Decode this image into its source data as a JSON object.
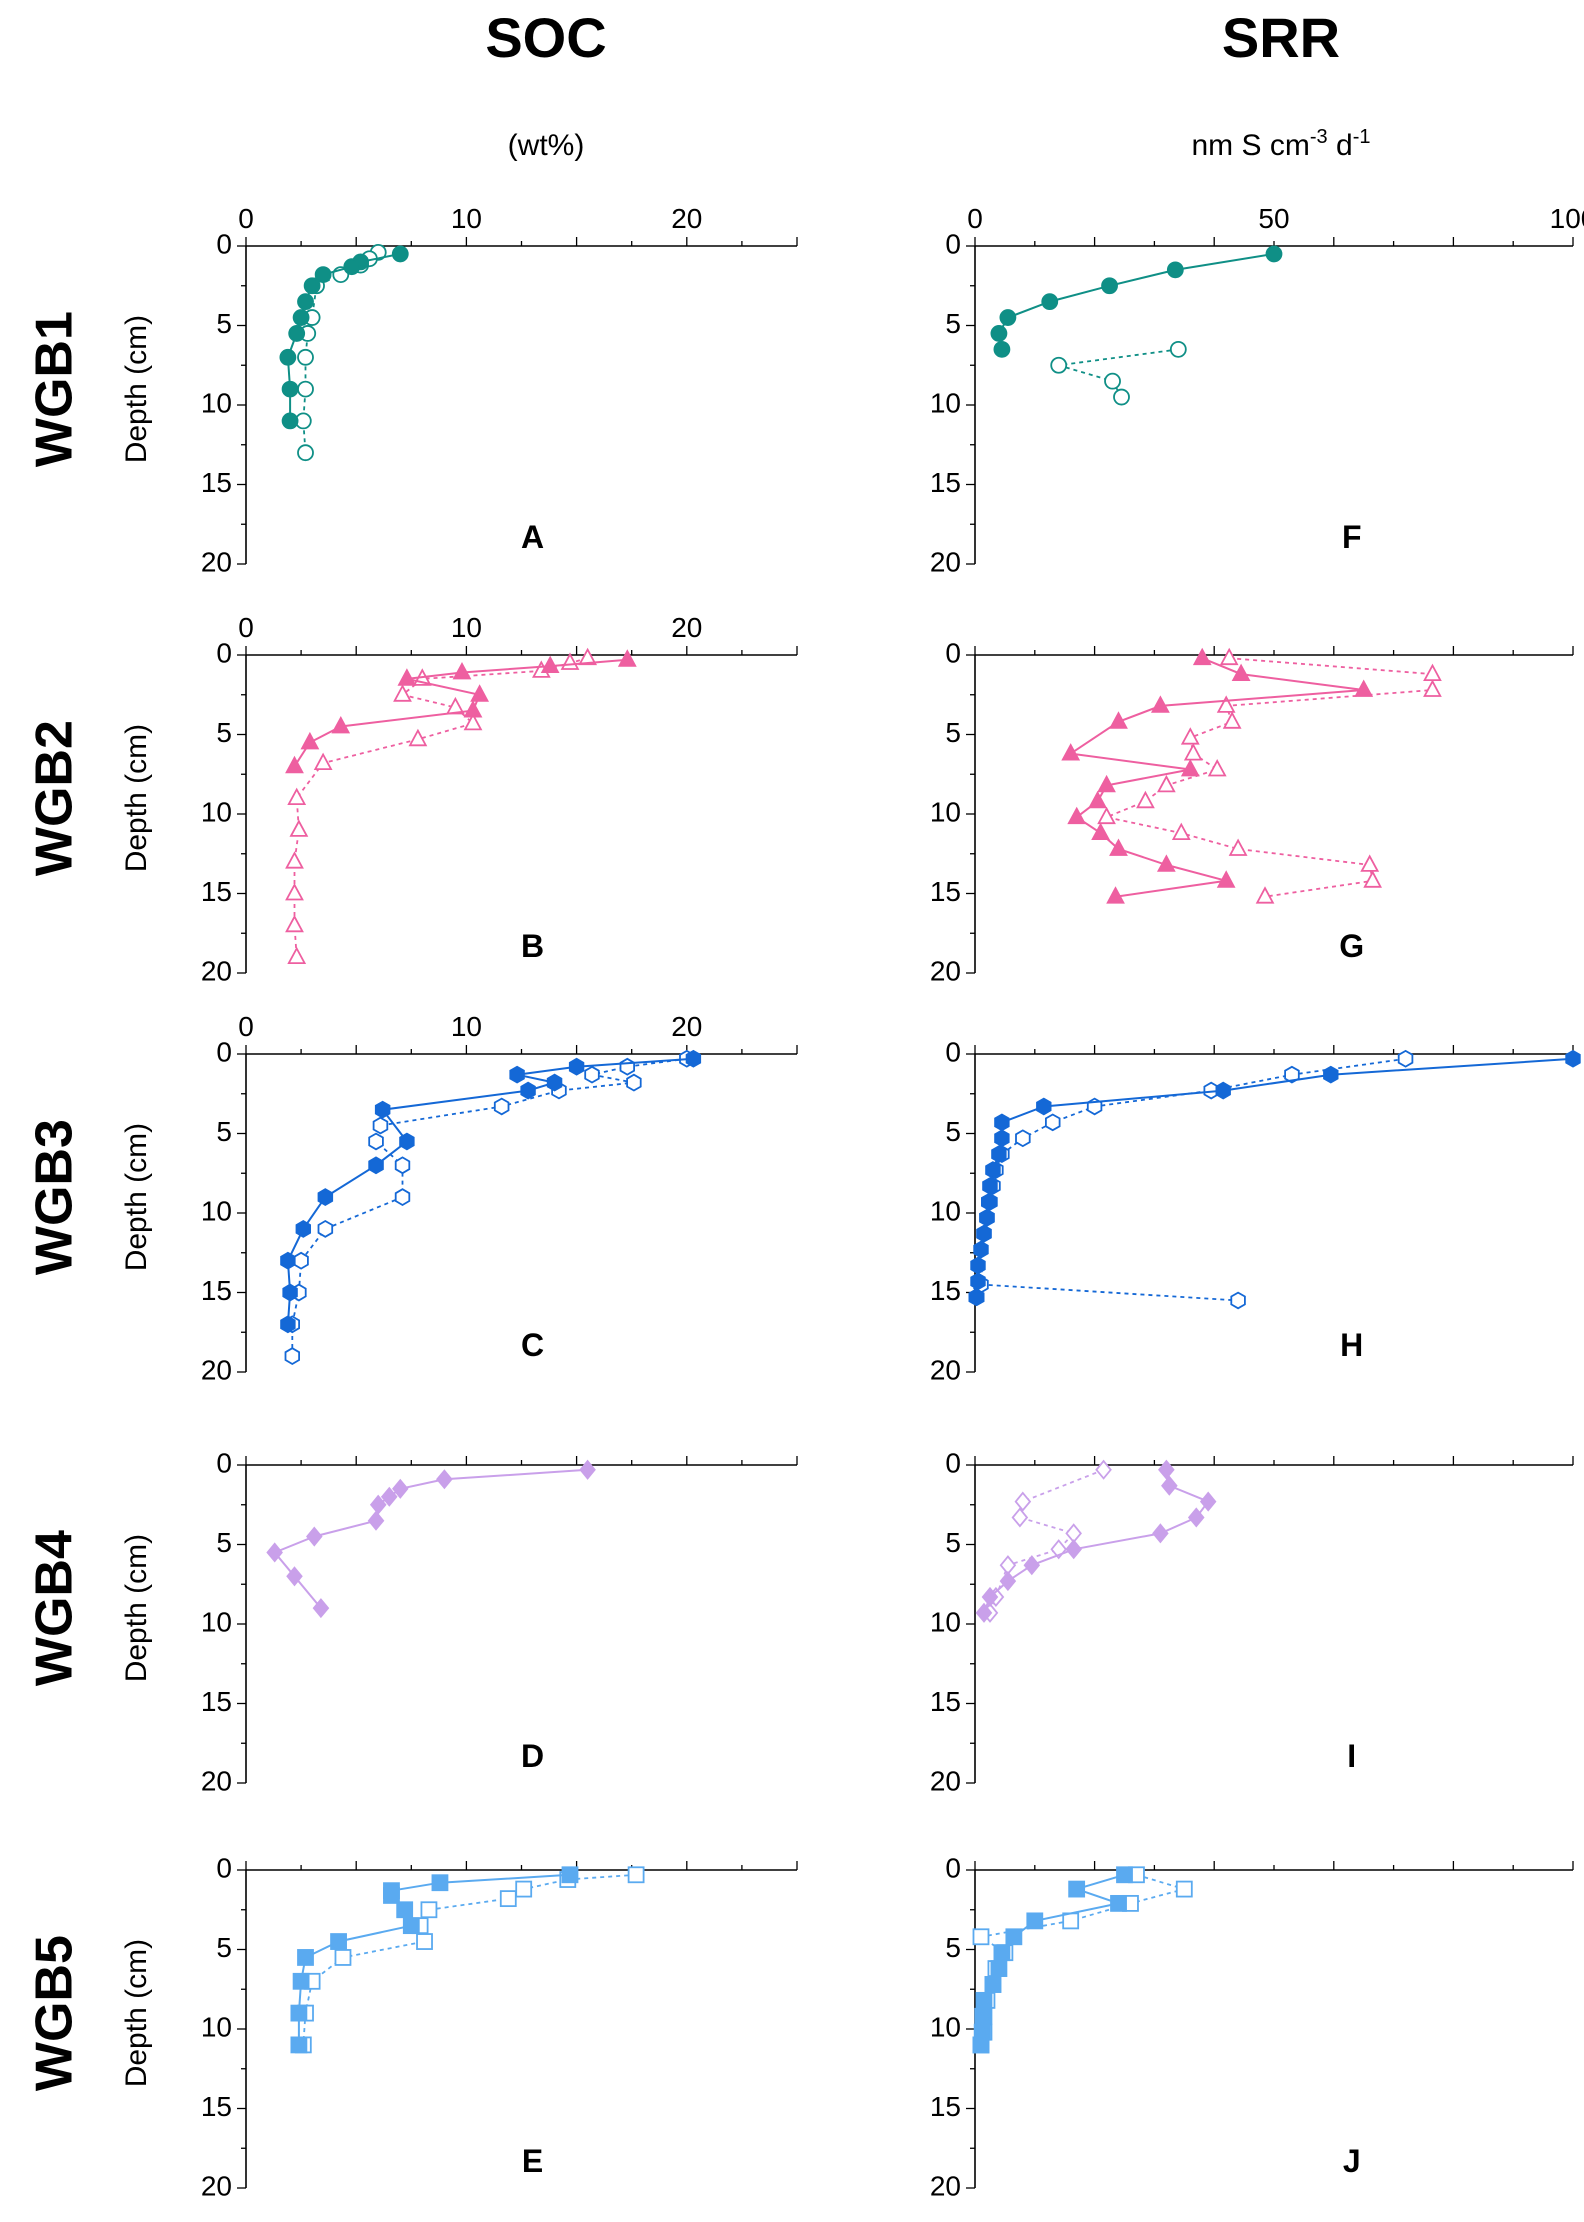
{
  "columns": [
    {
      "title": "SOC",
      "unit": "(wt%)"
    },
    {
      "title": "SRR",
      "unit": "nm S cm-3 d-1",
      "unit_parts": {
        "base1": "nm S cm",
        "sup1": "-3",
        "base2": " d",
        "sup2": "-1"
      }
    }
  ],
  "rows": [
    {
      "label": "WGB1",
      "color": "#0f8f86",
      "marker": "circle"
    },
    {
      "label": "WGB2",
      "color": "#ee5fa0",
      "marker": "triangle"
    },
    {
      "label": "WGB3",
      "color": "#1468d6",
      "marker": "hexagon"
    },
    {
      "label": "WGB4",
      "color": "#c9a0ea",
      "marker": "diamond"
    },
    {
      "label": "WGB5",
      "color": "#5aaaf0",
      "marker": "square"
    }
  ],
  "chart_data": [
    {
      "type": "line",
      "panel": "A",
      "ylabel": "Depth (cm)",
      "xlim": [
        0,
        25
      ],
      "ylim": [
        0,
        20
      ],
      "xticks": [
        0,
        10,
        20
      ],
      "yticks": [
        0,
        5,
        10,
        15,
        20
      ],
      "series": [
        {
          "style": "filled-solid",
          "x": [
            7.0,
            5.2,
            4.8,
            3.5,
            3.0,
            2.7,
            2.5,
            2.3,
            1.9,
            2.0,
            2.0
          ],
          "y": [
            0.5,
            1.0,
            1.3,
            1.8,
            2.5,
            3.5,
            4.5,
            5.5,
            7.0,
            9.0,
            11.0
          ]
        },
        {
          "style": "open-dashed",
          "x": [
            6.0,
            5.6,
            5.2,
            4.3,
            3.2,
            3.0,
            2.8,
            2.7,
            2.7,
            2.6,
            2.7
          ],
          "y": [
            0.4,
            0.8,
            1.2,
            1.8,
            2.5,
            4.5,
            5.5,
            7.0,
            9.0,
            11.0,
            13.0
          ]
        }
      ]
    },
    {
      "type": "line",
      "panel": "B",
      "ylabel": "Depth (cm)",
      "xlim": [
        0,
        25
      ],
      "ylim": [
        0,
        20
      ],
      "xticks": [
        0,
        10,
        20
      ],
      "yticks": [
        0,
        5,
        10,
        15,
        20
      ],
      "series": [
        {
          "style": "filled-solid",
          "x": [
            17.3,
            13.8,
            9.8,
            7.3,
            10.6,
            10.3,
            4.3,
            2.9,
            2.2
          ],
          "y": [
            0.3,
            0.7,
            1.1,
            1.5,
            2.5,
            3.5,
            4.5,
            5.5,
            7.0
          ]
        },
        {
          "style": "open-dashed",
          "x": [
            15.5,
            14.7,
            13.4,
            8.0,
            7.1,
            9.5,
            10.3,
            7.8,
            3.5,
            2.3,
            2.4,
            2.2,
            2.2,
            2.2,
            2.3
          ],
          "y": [
            0.2,
            0.5,
            1.0,
            1.5,
            2.5,
            3.3,
            4.3,
            5.3,
            6.8,
            9.0,
            11.0,
            13.0,
            15.0,
            17.0,
            19.0
          ]
        }
      ]
    },
    {
      "type": "line",
      "panel": "C",
      "ylabel": "Depth (cm)",
      "xlim": [
        0,
        25
      ],
      "ylim": [
        0,
        20
      ],
      "xticks": [
        0,
        10,
        20
      ],
      "yticks": [
        0,
        5,
        10,
        15,
        20
      ],
      "series": [
        {
          "style": "filled-solid",
          "x": [
            20.3,
            15.0,
            12.3,
            14.0,
            12.8,
            6.2,
            7.3,
            5.9,
            3.6,
            2.6,
            1.9,
            2.0,
            1.9
          ],
          "y": [
            0.3,
            0.8,
            1.3,
            1.8,
            2.3,
            3.5,
            5.5,
            7.0,
            9.0,
            11.0,
            13.0,
            15.0,
            17.0
          ]
        },
        {
          "style": "open-dashed",
          "x": [
            20.0,
            17.3,
            15.7,
            17.6,
            14.2,
            11.6,
            6.1,
            5.9,
            7.1,
            7.1,
            3.6,
            2.5,
            2.4,
            2.1,
            2.1
          ],
          "y": [
            0.3,
            0.8,
            1.3,
            1.8,
            2.3,
            3.3,
            4.5,
            5.5,
            7.0,
            9.0,
            11.0,
            13.0,
            15.0,
            17.0,
            19.0
          ]
        }
      ]
    },
    {
      "type": "line",
      "panel": "D",
      "ylabel": "Depth (cm)",
      "xlim": [
        0,
        25
      ],
      "ylim": [
        0,
        20
      ],
      "xticks": [],
      "yticks": [
        0,
        5,
        10,
        15,
        20
      ],
      "series": [
        {
          "style": "filled-solid",
          "x": [
            15.5,
            9.0,
            7.0,
            6.5,
            6.0,
            5.9,
            3.1,
            1.3,
            2.2,
            3.4
          ],
          "y": [
            0.3,
            0.9,
            1.5,
            2.0,
            2.5,
            3.5,
            4.5,
            5.5,
            7.0,
            9.0
          ]
        }
      ]
    },
    {
      "type": "line",
      "panel": "E",
      "ylabel": "Depth (cm)",
      "xlim": [
        0,
        25
      ],
      "ylim": [
        0,
        20
      ],
      "xticks": [],
      "yticks": [
        0,
        5,
        10,
        15,
        20
      ],
      "series": [
        {
          "style": "filled-solid",
          "x": [
            14.7,
            8.8,
            6.6,
            6.6,
            7.2,
            7.5,
            4.2,
            2.7,
            2.5,
            2.4,
            2.4
          ],
          "y": [
            0.3,
            0.8,
            1.3,
            1.6,
            2.5,
            3.5,
            4.5,
            5.5,
            7.0,
            9.0,
            11.0
          ]
        },
        {
          "style": "open-dashed",
          "x": [
            17.7,
            14.6,
            12.6,
            11.9,
            8.3,
            7.9,
            8.1,
            4.4,
            3.0,
            2.7,
            2.6
          ],
          "y": [
            0.3,
            0.6,
            1.2,
            1.8,
            2.5,
            3.5,
            4.5,
            5.5,
            7.0,
            9.0,
            11.0
          ]
        }
      ]
    },
    {
      "type": "line",
      "panel": "F",
      "xlim": [
        0,
        100
      ],
      "ylim": [
        0,
        20
      ],
      "xticks": [
        0,
        50,
        100
      ],
      "yticks": [
        0,
        5,
        10,
        15,
        20
      ],
      "series": [
        {
          "style": "filled-solid",
          "x": [
            50.0,
            33.5,
            22.5,
            12.5,
            5.5,
            4.0,
            4.5
          ],
          "y": [
            0.5,
            1.5,
            2.5,
            3.5,
            4.5,
            5.5,
            6.5
          ]
        },
        {
          "style": "open-dashed",
          "x": [
            34.0,
            14.0,
            23.0,
            24.5
          ],
          "y": [
            6.5,
            7.5,
            8.5,
            9.5
          ]
        }
      ]
    },
    {
      "type": "line",
      "panel": "G",
      "xlim": [
        0,
        100
      ],
      "ylim": [
        0,
        20
      ],
      "xticks": [],
      "yticks": [
        0,
        5,
        10,
        15,
        20
      ],
      "series": [
        {
          "style": "filled-solid",
          "x": [
            38.0,
            44.5,
            65.0,
            31.0,
            24.0,
            16.0,
            36.0,
            22.0,
            20.5,
            17.0,
            21.0,
            24.0,
            32.0,
            42.0,
            23.5
          ],
          "y": [
            0.2,
            1.2,
            2.2,
            3.2,
            4.2,
            6.2,
            7.2,
            8.2,
            9.2,
            10.2,
            11.2,
            12.2,
            13.2,
            14.2,
            15.2
          ]
        },
        {
          "style": "open-dashed",
          "x": [
            42.5,
            76.5,
            76.5,
            42.0,
            43.0,
            36.0,
            36.5,
            40.5,
            32.0,
            28.5,
            22.0,
            34.5,
            44.0,
            66.0,
            66.5,
            48.5
          ],
          "y": [
            0.2,
            1.2,
            2.2,
            3.2,
            4.2,
            5.2,
            6.2,
            7.2,
            8.2,
            9.2,
            10.2,
            11.2,
            12.2,
            13.2,
            14.2,
            15.2
          ]
        }
      ]
    },
    {
      "type": "line",
      "panel": "H",
      "xlim": [
        0,
        100
      ],
      "ylim": [
        0,
        20
      ],
      "xticks": [],
      "yticks": [
        0,
        5,
        10,
        15,
        20
      ],
      "series": [
        {
          "style": "filled-solid",
          "x": [
            100.0,
            59.5,
            41.5,
            11.5,
            4.5,
            4.5,
            4.0,
            3.0,
            2.5,
            2.3,
            2.0,
            1.5,
            1.0,
            0.5,
            0.5,
            0.3,
            0.2
          ],
          "y": [
            0.3,
            1.3,
            2.3,
            3.3,
            4.3,
            5.3,
            6.3,
            7.3,
            8.3,
            9.3,
            10.3,
            11.3,
            12.3,
            13.3,
            14.3,
            15.3,
            15.3
          ]
        },
        {
          "style": "open-dashed",
          "x": [
            72.0,
            53.0,
            39.5,
            20.0,
            13.0,
            8.0,
            4.5,
            3.5,
            3.0,
            2.5,
            2.0,
            1.5,
            1.0,
            44.0
          ],
          "y": [
            0.3,
            1.3,
            2.3,
            3.3,
            4.3,
            5.3,
            6.3,
            7.3,
            8.3,
            9.3,
            10.3,
            11.3,
            14.5,
            15.5
          ]
        }
      ]
    },
    {
      "type": "line",
      "panel": "I",
      "xlim": [
        0,
        100
      ],
      "ylim": [
        0,
        20
      ],
      "xticks": [],
      "yticks": [
        0,
        5,
        10,
        15,
        20
      ],
      "series": [
        {
          "style": "filled-solid",
          "x": [
            32.0,
            32.5,
            39.0,
            37.0,
            31.0,
            16.5,
            9.5,
            5.5,
            2.5,
            1.5
          ],
          "y": [
            0.3,
            1.3,
            2.3,
            3.3,
            4.3,
            5.3,
            6.3,
            7.3,
            8.3,
            9.3
          ]
        },
        {
          "style": "open-dashed",
          "x": [
            21.5,
            8.0,
            7.5,
            16.5,
            14.0,
            5.5,
            3.5,
            2.5
          ],
          "y": [
            0.3,
            2.3,
            3.3,
            4.3,
            5.3,
            6.3,
            8.3,
            9.3
          ]
        }
      ]
    },
    {
      "type": "line",
      "panel": "J",
      "xlim": [
        0,
        100
      ],
      "ylim": [
        0,
        20
      ],
      "xticks": [],
      "yticks": [
        0,
        5,
        10,
        15,
        20
      ],
      "series": [
        {
          "style": "filled-solid",
          "x": [
            25.0,
            17.0,
            24.0,
            10.0,
            6.5,
            4.5,
            4.0,
            3.0,
            1.5,
            1.3,
            1.2,
            1.0,
            1.0
          ],
          "y": [
            0.3,
            1.2,
            2.1,
            3.2,
            4.2,
            5.2,
            6.2,
            7.2,
            8.2,
            9.2,
            10.2,
            11.0,
            11.0
          ]
        },
        {
          "style": "open-dashed",
          "x": [
            27.0,
            35.0,
            26.0,
            16.0,
            1.0,
            5.0,
            3.5,
            3.0,
            2.0,
            1.5,
            1.5,
            1.0
          ],
          "y": [
            0.3,
            1.2,
            2.1,
            3.2,
            4.2,
            5.2,
            6.2,
            7.2,
            8.2,
            9.2,
            10.2,
            11.0
          ]
        }
      ]
    }
  ]
}
